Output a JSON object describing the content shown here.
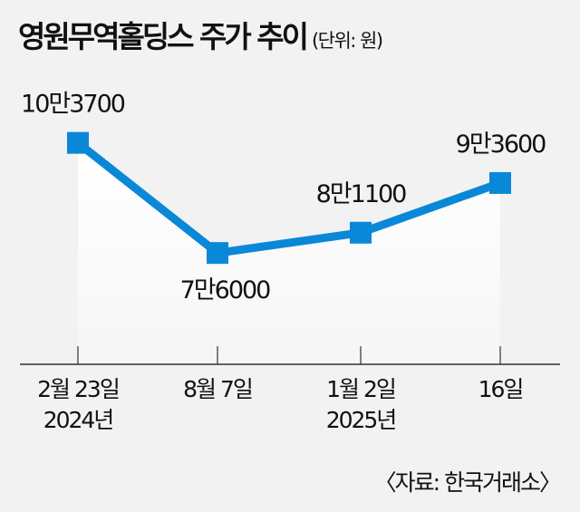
{
  "title": "영원무역홀딩스 주가 추이",
  "unit": "(단위: 원)",
  "source": "〈자료: 한국거래소〉",
  "chart_data": {
    "type": "line",
    "title": "영원무역홀딩스 주가 추이",
    "unit": "(단위: 원)",
    "categories": [
      [
        "2월 23일",
        "2024년"
      ],
      [
        "8월 7일"
      ],
      [
        "1월 2일",
        "2025년"
      ],
      [
        "16일"
      ]
    ],
    "values": [
      103700,
      76000,
      81100,
      93600
    ],
    "data_labels": [
      "10만3700",
      "7만6000",
      "8만1100",
      "9만3600"
    ],
    "ylim": [
      48000,
      110000
    ],
    "grid": false,
    "line_color": "#0a88d8",
    "marker": "square",
    "background": "#f2f2f2"
  }
}
